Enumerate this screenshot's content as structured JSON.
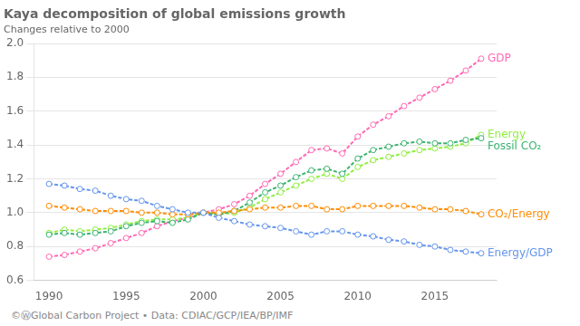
{
  "chart_data": {
    "type": "line",
    "title": "Kaya decomposition of global emissions growth",
    "subtitle": "Changes relative to 2000",
    "footer": "©ⓌGlobal Carbon Project  •  Data: CDIAC/GCP/IEA/BP/IMF",
    "x": [
      1990,
      1991,
      1992,
      1993,
      1994,
      1995,
      1996,
      1997,
      1998,
      1999,
      2000,
      2001,
      2002,
      2003,
      2004,
      2005,
      2006,
      2007,
      2008,
      2009,
      2010,
      2011,
      2012,
      2013,
      2014,
      2015,
      2016,
      2017,
      2018
    ],
    "series": [
      {
        "name": "Energy/GDP",
        "color": "#6495ed",
        "values": [
          1.17,
          1.16,
          1.14,
          1.13,
          1.1,
          1.08,
          1.07,
          1.04,
          1.02,
          1.0,
          1.0,
          0.97,
          0.95,
          0.93,
          0.92,
          0.91,
          0.89,
          0.87,
          0.89,
          0.89,
          0.87,
          0.86,
          0.84,
          0.83,
          0.81,
          0.8,
          0.78,
          0.77,
          0.76
        ]
      },
      {
        "name": "CO₂/Energy",
        "color": "#ff8c00",
        "values": [
          1.04,
          1.03,
          1.02,
          1.01,
          1.01,
          1.01,
          1.0,
          1.0,
          0.99,
          0.99,
          1.0,
          1.0,
          1.01,
          1.02,
          1.03,
          1.03,
          1.04,
          1.04,
          1.02,
          1.02,
          1.04,
          1.04,
          1.04,
          1.04,
          1.03,
          1.02,
          1.02,
          1.01,
          0.99
        ]
      },
      {
        "name": "Fossil CO₂",
        "color": "#3cb371",
        "values": [
          0.87,
          0.88,
          0.87,
          0.88,
          0.89,
          0.92,
          0.94,
          0.95,
          0.94,
          0.96,
          1.0,
          0.99,
          1.01,
          1.06,
          1.12,
          1.16,
          1.21,
          1.25,
          1.26,
          1.23,
          1.32,
          1.37,
          1.39,
          1.41,
          1.42,
          1.41,
          1.41,
          1.43,
          1.44
        ]
      },
      {
        "name": "Energy",
        "color": "#90ee40",
        "values": [
          0.88,
          0.9,
          0.89,
          0.9,
          0.91,
          0.93,
          0.95,
          0.96,
          0.96,
          0.97,
          1.0,
          0.99,
          1.0,
          1.03,
          1.08,
          1.12,
          1.16,
          1.2,
          1.23,
          1.2,
          1.27,
          1.31,
          1.33,
          1.35,
          1.37,
          1.38,
          1.39,
          1.41,
          1.46
        ]
      },
      {
        "name": "GDP",
        "color": "#ff69b4",
        "values": [
          0.74,
          0.75,
          0.77,
          0.79,
          0.82,
          0.85,
          0.88,
          0.92,
          0.95,
          0.97,
          1.0,
          1.02,
          1.05,
          1.1,
          1.17,
          1.23,
          1.3,
          1.37,
          1.38,
          1.35,
          1.45,
          1.52,
          1.57,
          1.63,
          1.68,
          1.73,
          1.78,
          1.84,
          1.91
        ]
      }
    ],
    "xlim": [
      1989,
      2019
    ],
    "xticks": [
      1990,
      1995,
      2000,
      2005,
      2010,
      2015
    ],
    "ylim": [
      0.6,
      2.0
    ],
    "yticks": [
      0.6,
      0.8,
      {
        "value": 1.0,
        "label": "1.0"
      },
      1.2,
      1.4,
      1.6,
      1.8,
      {
        "value": 2.0,
        "label": "2.0"
      }
    ],
    "grid": "y",
    "marker": "circle",
    "line_style": "dashed"
  }
}
